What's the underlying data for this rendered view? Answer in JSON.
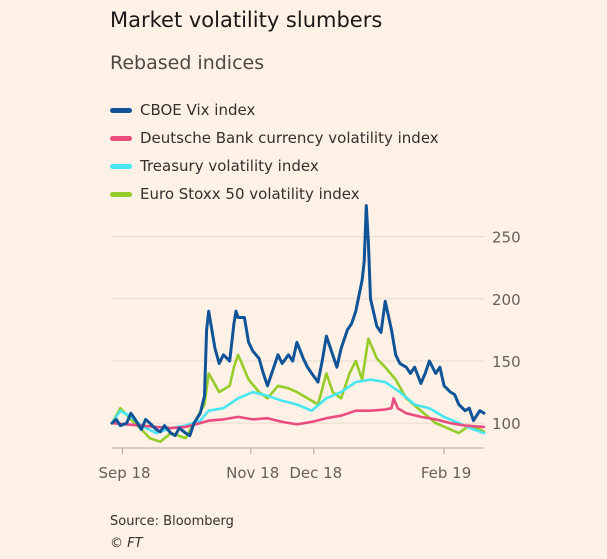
{
  "title": "Market volatility slumbers",
  "subtitle": "Rebased indices",
  "source": "Source: Bloomberg",
  "credit": "© FT",
  "chart_data": {
    "type": "line",
    "title": "Market volatility slumbers",
    "subtitle": "Rebased indices",
    "xlabel": "",
    "ylabel": "",
    "x_axis_type": "date",
    "x_ticks": [
      {
        "date": "2018-09-01",
        "label": "Sep 18"
      },
      {
        "date": "2018-11-01",
        "label": "Nov 18"
      },
      {
        "date": "2018-12-01",
        "label": "Dec 18"
      },
      {
        "date": "2019-02-01",
        "label": "Feb 19"
      }
    ],
    "x_range": [
      "2018-08-27",
      "2019-02-20"
    ],
    "y_ticks": [
      100,
      150,
      200,
      250
    ],
    "ylim": [
      80,
      265
    ],
    "y_axis_position": "right",
    "grid": "horizontal",
    "legend_position": "top-left",
    "series": [
      {
        "name": "CBOE Vix index",
        "color": "#0f5499",
        "points": [
          [
            "2018-08-27",
            100
          ],
          [
            "2018-08-29",
            103
          ],
          [
            "2018-08-31",
            98
          ],
          [
            "2018-09-03",
            100
          ],
          [
            "2018-09-05",
            108
          ],
          [
            "2018-09-07",
            103
          ],
          [
            "2018-09-10",
            95
          ],
          [
            "2018-09-12",
            103
          ],
          [
            "2018-09-14",
            100
          ],
          [
            "2018-09-17",
            95
          ],
          [
            "2018-09-19",
            93
          ],
          [
            "2018-09-21",
            98
          ],
          [
            "2018-09-24",
            92
          ],
          [
            "2018-09-26",
            90
          ],
          [
            "2018-09-28",
            96
          ],
          [
            "2018-10-01",
            92
          ],
          [
            "2018-10-03",
            90
          ],
          [
            "2018-10-05",
            100
          ],
          [
            "2018-10-08",
            108
          ],
          [
            "2018-10-10",
            122
          ],
          [
            "2018-10-11",
            175
          ],
          [
            "2018-10-12",
            190
          ],
          [
            "2018-10-15",
            160
          ],
          [
            "2018-10-17",
            148
          ],
          [
            "2018-10-19",
            155
          ],
          [
            "2018-10-22",
            150
          ],
          [
            "2018-10-24",
            180
          ],
          [
            "2018-10-25",
            190
          ],
          [
            "2018-10-26",
            185
          ],
          [
            "2018-10-29",
            185
          ],
          [
            "2018-10-31",
            165
          ],
          [
            "2018-11-02",
            158
          ],
          [
            "2018-11-05",
            152
          ],
          [
            "2018-11-07",
            140
          ],
          [
            "2018-11-09",
            130
          ],
          [
            "2018-11-12",
            145
          ],
          [
            "2018-11-14",
            155
          ],
          [
            "2018-11-16",
            148
          ],
          [
            "2018-11-19",
            155
          ],
          [
            "2018-11-21",
            150
          ],
          [
            "2018-11-23",
            165
          ],
          [
            "2018-11-26",
            152
          ],
          [
            "2018-11-28",
            145
          ],
          [
            "2018-11-30",
            140
          ],
          [
            "2018-12-03",
            133
          ],
          [
            "2018-12-05",
            150
          ],
          [
            "2018-12-07",
            170
          ],
          [
            "2018-12-10",
            155
          ],
          [
            "2018-12-12",
            145
          ],
          [
            "2018-12-14",
            160
          ],
          [
            "2018-12-17",
            175
          ],
          [
            "2018-12-19",
            180
          ],
          [
            "2018-12-21",
            190
          ],
          [
            "2018-12-24",
            215
          ],
          [
            "2018-12-25",
            230
          ],
          [
            "2018-12-26",
            275
          ],
          [
            "2018-12-27",
            245
          ],
          [
            "2018-12-28",
            200
          ],
          [
            "2018-12-31",
            178
          ],
          [
            "2019-01-02",
            173
          ],
          [
            "2019-01-04",
            198
          ],
          [
            "2019-01-07",
            175
          ],
          [
            "2019-01-09",
            155
          ],
          [
            "2019-01-11",
            148
          ],
          [
            "2019-01-14",
            145
          ],
          [
            "2019-01-16",
            140
          ],
          [
            "2019-01-18",
            145
          ],
          [
            "2019-01-21",
            132
          ],
          [
            "2019-01-23",
            140
          ],
          [
            "2019-01-25",
            150
          ],
          [
            "2019-01-28",
            140
          ],
          [
            "2019-01-30",
            145
          ],
          [
            "2019-02-01",
            130
          ],
          [
            "2019-02-04",
            125
          ],
          [
            "2019-02-06",
            123
          ],
          [
            "2019-02-08",
            115
          ],
          [
            "2019-02-11",
            110
          ],
          [
            "2019-02-13",
            112
          ],
          [
            "2019-02-15",
            102
          ],
          [
            "2019-02-18",
            110
          ],
          [
            "2019-02-20",
            108
          ]
        ]
      },
      {
        "name": "Deutsche Bank currency volatility index",
        "color": "#ea4c7f",
        "points": [
          [
            "2018-08-27",
            100
          ],
          [
            "2018-09-03",
            99
          ],
          [
            "2018-09-10",
            98
          ],
          [
            "2018-09-17",
            97
          ],
          [
            "2018-09-24",
            96
          ],
          [
            "2018-10-01",
            97
          ],
          [
            "2018-10-08",
            100
          ],
          [
            "2018-10-12",
            102
          ],
          [
            "2018-10-19",
            103
          ],
          [
            "2018-10-26",
            105
          ],
          [
            "2018-11-02",
            103
          ],
          [
            "2018-11-09",
            104
          ],
          [
            "2018-11-16",
            101
          ],
          [
            "2018-11-23",
            99
          ],
          [
            "2018-11-30",
            101
          ],
          [
            "2018-12-07",
            104
          ],
          [
            "2018-12-14",
            106
          ],
          [
            "2018-12-21",
            110
          ],
          [
            "2018-12-28",
            110
          ],
          [
            "2019-01-04",
            111
          ],
          [
            "2019-01-07",
            112
          ],
          [
            "2019-01-08",
            120
          ],
          [
            "2019-01-10",
            112
          ],
          [
            "2019-01-14",
            108
          ],
          [
            "2019-01-21",
            105
          ],
          [
            "2019-01-28",
            103
          ],
          [
            "2019-02-04",
            100
          ],
          [
            "2019-02-11",
            98
          ],
          [
            "2019-02-20",
            97
          ]
        ]
      },
      {
        "name": "Treasury volatility index",
        "color": "#48e6f1",
        "points": [
          [
            "2018-08-27",
            100
          ],
          [
            "2018-08-31",
            110
          ],
          [
            "2018-09-05",
            105
          ],
          [
            "2018-09-10",
            98
          ],
          [
            "2018-09-17",
            92
          ],
          [
            "2018-09-24",
            96
          ],
          [
            "2018-10-01",
            98
          ],
          [
            "2018-10-08",
            102
          ],
          [
            "2018-10-12",
            110
          ],
          [
            "2018-10-19",
            112
          ],
          [
            "2018-10-26",
            120
          ],
          [
            "2018-11-02",
            125
          ],
          [
            "2018-11-09",
            122
          ],
          [
            "2018-11-16",
            118
          ],
          [
            "2018-11-23",
            115
          ],
          [
            "2018-11-30",
            110
          ],
          [
            "2018-12-07",
            120
          ],
          [
            "2018-12-14",
            125
          ],
          [
            "2018-12-21",
            133
          ],
          [
            "2018-12-28",
            135
          ],
          [
            "2019-01-04",
            133
          ],
          [
            "2019-01-11",
            125
          ],
          [
            "2019-01-18",
            115
          ],
          [
            "2019-01-25",
            112
          ],
          [
            "2019-02-01",
            105
          ],
          [
            "2019-02-08",
            100
          ],
          [
            "2019-02-15",
            95
          ],
          [
            "2019-02-20",
            92
          ]
        ]
      },
      {
        "name": "Euro Stoxx 50 volatility index",
        "color": "#96cc28",
        "points": [
          [
            "2018-08-27",
            100
          ],
          [
            "2018-08-31",
            112
          ],
          [
            "2018-09-05",
            103
          ],
          [
            "2018-09-10",
            95
          ],
          [
            "2018-09-14",
            88
          ],
          [
            "2018-09-19",
            85
          ],
          [
            "2018-09-24",
            92
          ],
          [
            "2018-10-01",
            88
          ],
          [
            "2018-10-05",
            100
          ],
          [
            "2018-10-10",
            115
          ],
          [
            "2018-10-12",
            140
          ],
          [
            "2018-10-17",
            125
          ],
          [
            "2018-10-22",
            130
          ],
          [
            "2018-10-24",
            145
          ],
          [
            "2018-10-26",
            155
          ],
          [
            "2018-10-31",
            135
          ],
          [
            "2018-11-05",
            125
          ],
          [
            "2018-11-09",
            120
          ],
          [
            "2018-11-14",
            130
          ],
          [
            "2018-11-19",
            128
          ],
          [
            "2018-11-23",
            125
          ],
          [
            "2018-11-28",
            120
          ],
          [
            "2018-12-03",
            115
          ],
          [
            "2018-12-07",
            140
          ],
          [
            "2018-12-10",
            125
          ],
          [
            "2018-12-14",
            120
          ],
          [
            "2018-12-18",
            140
          ],
          [
            "2018-12-21",
            150
          ],
          [
            "2018-12-24",
            135
          ],
          [
            "2018-12-27",
            168
          ],
          [
            "2018-12-31",
            152
          ],
          [
            "2019-01-04",
            145
          ],
          [
            "2019-01-09",
            135
          ],
          [
            "2019-01-14",
            120
          ],
          [
            "2019-01-21",
            110
          ],
          [
            "2019-01-28",
            100
          ],
          [
            "2019-02-04",
            95
          ],
          [
            "2019-02-08",
            92
          ],
          [
            "2019-02-13",
            98
          ],
          [
            "2019-02-18",
            95
          ],
          [
            "2019-02-20",
            93
          ]
        ]
      }
    ]
  }
}
